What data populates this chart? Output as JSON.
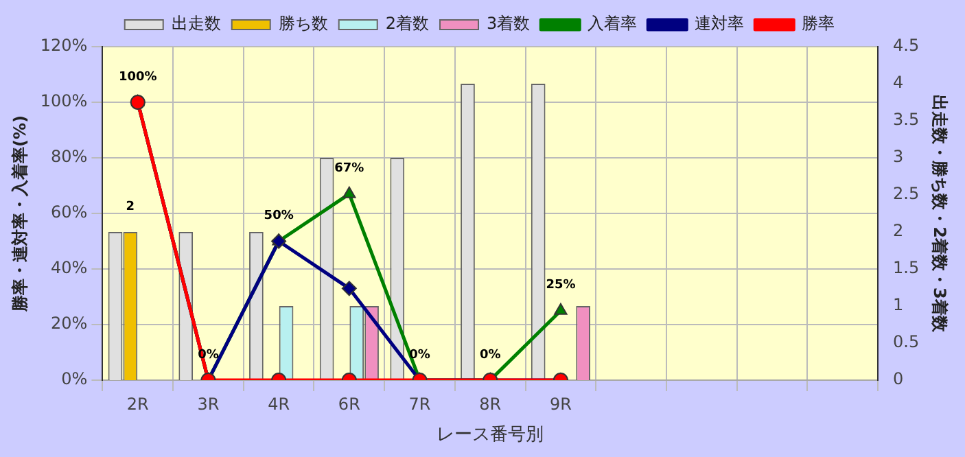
{
  "chart_data": {
    "type": "bar",
    "xlabel": "レース番号別",
    "ylabel": "勝率・連対率・入着率(%)",
    "y2label": "出走数・勝ち数・2着数・3着数",
    "categories": [
      "2R",
      "3R",
      "4R",
      "6R",
      "7R",
      "8R",
      "9R",
      null,
      null,
      null,
      null
    ],
    "series": [
      {
        "name": "出走数",
        "axis": "y2",
        "color": "#e0e0e0",
        "values": [
          2,
          2,
          2,
          3,
          3,
          4,
          4,
          null,
          null,
          null,
          null
        ]
      },
      {
        "name": "勝ち数",
        "axis": "y2",
        "color": "#f0c000",
        "values": [
          2,
          0,
          0,
          0,
          0,
          0,
          0,
          null,
          null,
          null,
          null
        ],
        "value_labels": [
          "2",
          null,
          null,
          null,
          null,
          null,
          null,
          null,
          null,
          null,
          null
        ]
      },
      {
        "name": "2着数",
        "axis": "y2",
        "color": "#b8f0f0",
        "values": [
          0,
          0,
          1,
          1,
          0,
          0,
          0,
          null,
          null,
          null,
          null
        ]
      },
      {
        "name": "3着数",
        "axis": "y2",
        "color": "#f090c0",
        "values": [
          0,
          0,
          0,
          1,
          0,
          0,
          1,
          null,
          null,
          null,
          null
        ]
      },
      {
        "name": "入着率",
        "type": "line",
        "marker": "triangle",
        "color": "#008000",
        "values": [
          100,
          0,
          50,
          67,
          0,
          0,
          25,
          null,
          null,
          null,
          null
        ],
        "value_labels": [
          "100%",
          "0%",
          "50%",
          "67%",
          "0%",
          "0%",
          "25%",
          null,
          null,
          null,
          null
        ]
      },
      {
        "name": "連対率",
        "type": "line",
        "marker": "diamond",
        "color": "#000080",
        "values": [
          100,
          0,
          50,
          33,
          0,
          0,
          0,
          null,
          null,
          null,
          null
        ]
      },
      {
        "name": "勝率",
        "type": "line",
        "marker": "circle",
        "color": "#ff0000",
        "values": [
          100,
          0,
          0,
          0,
          0,
          0,
          0,
          null,
          null,
          null,
          null
        ]
      }
    ],
    "ylim": [
      0,
      120
    ],
    "yticks": [
      {
        "value": 0,
        "label": "0%"
      },
      {
        "value": 20,
        "label": "20%"
      },
      {
        "value": 40,
        "label": "40%"
      },
      {
        "value": 60,
        "label": "60%"
      },
      {
        "value": 80,
        "label": "80%"
      },
      {
        "value": 100,
        "label": "100%"
      },
      {
        "value": 120,
        "label": "120%"
      }
    ],
    "y2lim": [
      0,
      4.5
    ],
    "y2ticks": [
      0,
      0.5,
      1,
      1.5,
      2,
      2.5,
      3,
      3.5,
      4,
      4.5
    ],
    "grid": true,
    "legend": "top"
  }
}
